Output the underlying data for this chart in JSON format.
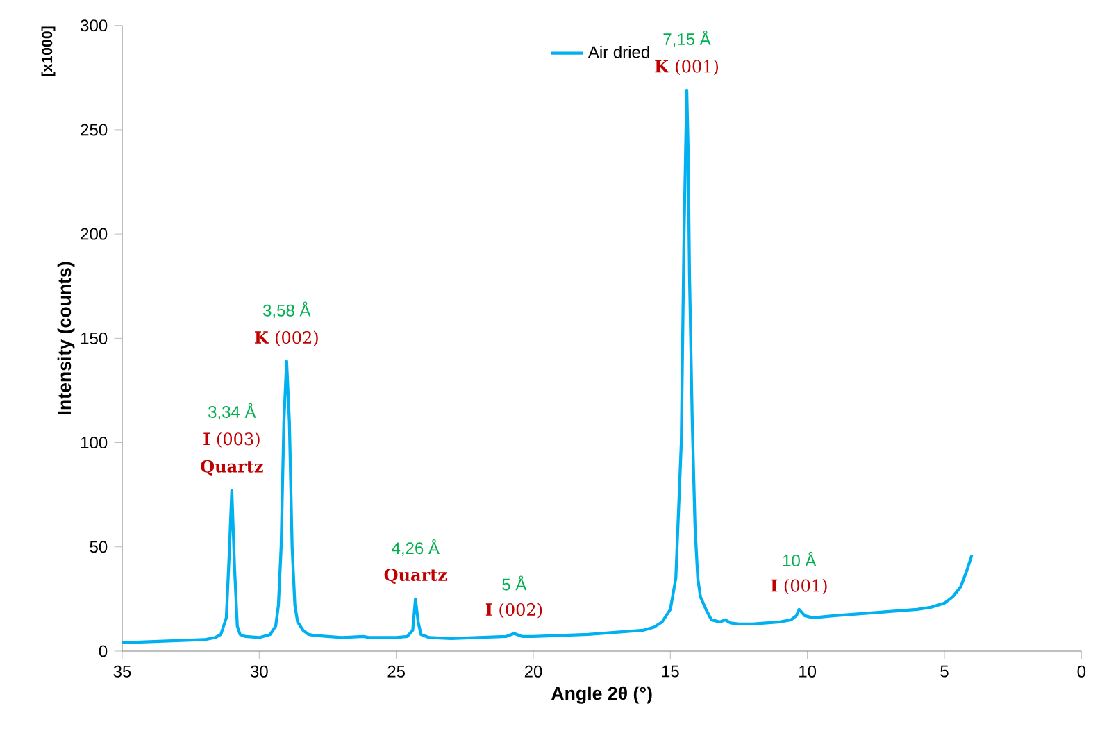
{
  "chart_data": {
    "type": "line",
    "xlabel": "Angle 2θ (°)",
    "ylabel": "Intensity (counts)",
    "xlim": [
      35,
      0
    ],
    "xticks": [
      35,
      30,
      25,
      20,
      15,
      10,
      5,
      0
    ],
    "ylim": [
      0,
      300
    ],
    "yticks": [
      0,
      50,
      100,
      150,
      200,
      250,
      300
    ],
    "grid": false,
    "legend": "top",
    "marker": "none",
    "line_style": "solid",
    "series": [
      {
        "name": "Air dried",
        "color": "#00b0f0",
        "x": [
          35,
          34,
          33,
          32,
          31.6,
          31.4,
          31.2,
          31.1,
          31.0,
          30.9,
          30.8,
          30.7,
          30.5,
          30,
          29.6,
          29.4,
          29.3,
          29.2,
          29.1,
          29.0,
          28.9,
          28.8,
          28.7,
          28.6,
          28.4,
          28.2,
          28,
          27,
          26.2,
          26,
          25,
          24.6,
          24.4,
          24.3,
          24.2,
          24.1,
          23.8,
          23,
          22,
          21,
          20.7,
          20.4,
          20,
          19,
          18,
          17,
          16,
          15.6,
          15.3,
          15.0,
          14.8,
          14.6,
          14.5,
          14.4,
          14.35,
          14.3,
          14.2,
          14.1,
          14.0,
          13.9,
          13.7,
          13.5,
          13.2,
          13.0,
          12.8,
          12.5,
          12,
          11,
          10.6,
          10.4,
          10.3,
          10.1,
          9.8,
          9,
          8,
          7,
          6,
          5.5,
          5,
          4.7,
          4.4,
          4.2,
          4.0
        ],
        "values": [
          4,
          4.5,
          5,
          5.5,
          6.5,
          8,
          16,
          45,
          77,
          40,
          12,
          8,
          7,
          6.5,
          8,
          12,
          22,
          50,
          110,
          139,
          110,
          50,
          22,
          14,
          10,
          8,
          7.5,
          6.5,
          7,
          6.5,
          6.5,
          7,
          10,
          25,
          14,
          8,
          6.5,
          6,
          6.5,
          7,
          8.5,
          7,
          7,
          7.5,
          8,
          9,
          10,
          11.5,
          14,
          20,
          35,
          100,
          200,
          269,
          240,
          180,
          110,
          60,
          35,
          26,
          20,
          15,
          14,
          15,
          13.5,
          13,
          13,
          14,
          15,
          17,
          20,
          17,
          16,
          17,
          18,
          19,
          20,
          21,
          23,
          26,
          31,
          38,
          46
        ]
      }
    ],
    "annotations": [
      "3,34 Å",
      "**I** (003)",
      {
        "text": "Quartz",
        "x": 31.0,
        "y": 77
      },
      "3,58 Å",
      {
        "text": "**K** (002)",
        "x": 29.0,
        "y": 139
      },
      "4,26 Å",
      {
        "text": "Quartz",
        "x": 24.3,
        "y": 25
      },
      "5 Å",
      {
        "text": "**I** (002)",
        "x": 20.7,
        "y": 8.5
      },
      "7,15 Å",
      {
        "text": "**K** (001)",
        "x": 14.4,
        "y": 269
      },
      "10 Å",
      {
        "text": "**I** (001)",
        "x": 10.3,
        "y": 20
      },
      "[x1000]"
    ]
  }
}
